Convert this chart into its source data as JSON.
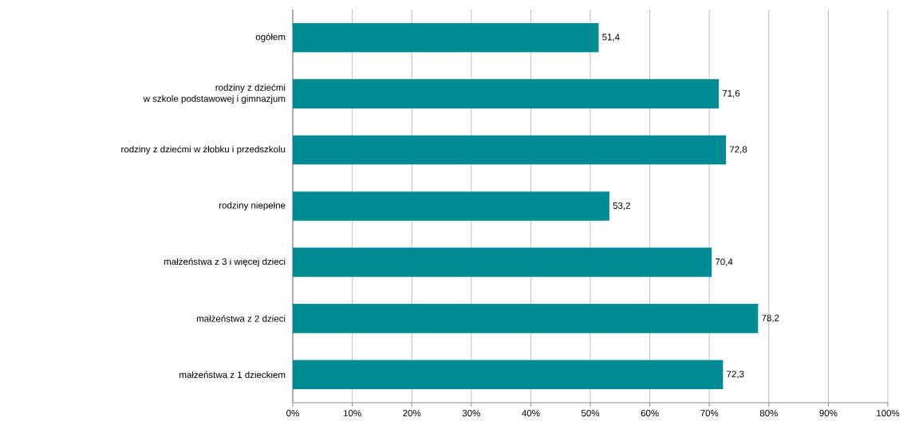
{
  "chart_data": {
    "type": "bar",
    "orientation": "horizontal",
    "categories": [
      "ogółem",
      "rodziny z dziećmi\nw szkole podstawowej i gimnazjum",
      "rodziny z dziećmi w żłobku i przedszkolu",
      "rodziny niepełne",
      "małżeństwa z 3 i więcej dzieci",
      "małżeństwa z 2 dzieci",
      "małżeństwa z 1 dzieckiem"
    ],
    "values": [
      51.4,
      71.6,
      72.8,
      53.2,
      70.4,
      78.2,
      72.3
    ],
    "value_labels": [
      "51,4",
      "71,6",
      "72,8",
      "53,2",
      "70,4",
      "78,2",
      "72,3"
    ],
    "color": "#008b95",
    "xlim": [
      0,
      100
    ],
    "xticks": [
      {
        "value": 0,
        "label": "0%"
      },
      {
        "value": 10,
        "label": "10%"
      },
      {
        "value": 20,
        "label": "20%"
      },
      {
        "value": 30,
        "label": "30%"
      },
      {
        "value": 40,
        "label": "40%"
      },
      {
        "value": 50,
        "label": "50%"
      },
      {
        "value": 60,
        "label": "60%"
      },
      {
        "value": 70,
        "label": "70%"
      },
      {
        "value": 80,
        "label": "80%"
      },
      {
        "value": 90,
        "label": "90%"
      },
      {
        "value": 100,
        "label": "100%"
      }
    ],
    "grid": "x"
  }
}
